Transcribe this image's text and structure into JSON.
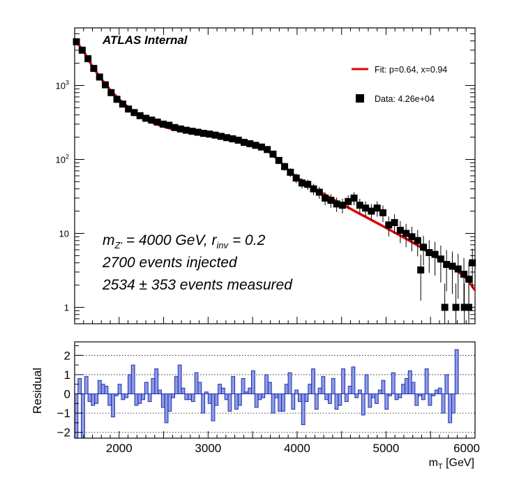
{
  "chart_data": [
    {
      "type": "scatter",
      "panel": "main",
      "yscale": "log",
      "xlim": [
        1500,
        6000
      ],
      "ylim": [
        0.6,
        6000
      ],
      "y_tick_labels": [
        "1",
        "10",
        "10^2",
        "10^3"
      ],
      "y_tick_values": [
        1,
        10,
        100,
        1000
      ],
      "header_text": "ATLAS Internal",
      "legend": {
        "placement": "top-right",
        "entries": [
          {
            "label": "Fit: p=0.64, x=0.94",
            "marker": "line",
            "color": "#e00000"
          },
          {
            "label": "Data: 4.26e+04",
            "marker": "square",
            "color": "#000000"
          }
        ]
      },
      "annotations": {
        "line1_main": "m",
        "line1_sub1": "Z′",
        "line1_mid": " = 4000 GeV, r",
        "line1_sub2": "inv",
        "line1_end": " = 0.2",
        "line2": "2700 events injected",
        "line3": "2534 ± 353 events measured"
      },
      "series": [
        {
          "name": "Data: 4.26e+04",
          "color": "#000000",
          "points": [
            [
              1520,
              3900
            ],
            [
              1585,
              3000
            ],
            [
              1650,
              2300
            ],
            [
              1715,
              1700
            ],
            [
              1780,
              1300
            ],
            [
              1845,
              1020
            ],
            [
              1910,
              800
            ],
            [
              1975,
              650
            ],
            [
              2040,
              560
            ],
            [
              2105,
              480
            ],
            [
              2170,
              430
            ],
            [
              2235,
              390
            ],
            [
              2300,
              360
            ],
            [
              2365,
              340
            ],
            [
              2430,
              320
            ],
            [
              2495,
              300
            ],
            [
              2560,
              290
            ],
            [
              2625,
              270
            ],
            [
              2690,
              258
            ],
            [
              2755,
              248
            ],
            [
              2820,
              240
            ],
            [
              2885,
              233
            ],
            [
              2950,
              225
            ],
            [
              3015,
              220
            ],
            [
              3080,
              213
            ],
            [
              3145,
              205
            ],
            [
              3210,
              197
            ],
            [
              3275,
              190
            ],
            [
              3340,
              182
            ],
            [
              3405,
              170
            ],
            [
              3470,
              163
            ],
            [
              3535,
              155
            ],
            [
              3600,
              147
            ],
            [
              3665,
              136
            ],
            [
              3730,
              118
            ],
            [
              3795,
              97
            ],
            [
              3860,
              80
            ],
            [
              3925,
              67
            ],
            [
              3990,
              56
            ],
            [
              4055,
              48
            ],
            [
              4120,
              46
            ],
            [
              4185,
              40
            ],
            [
              4250,
              36
            ],
            [
              4315,
              30
            ],
            [
              4380,
              28
            ],
            [
              4445,
              25
            ],
            [
              4510,
              24
            ],
            [
              4575,
              27
            ],
            [
              4640,
              30
            ],
            [
              4705,
              24
            ],
            [
              4770,
              22
            ],
            [
              4835,
              20
            ],
            [
              4900,
              22
            ],
            [
              4965,
              19
            ],
            [
              5030,
              13
            ],
            [
              5095,
              14
            ],
            [
              5160,
              11
            ],
            [
              5225,
              10
            ],
            [
              5290,
              9
            ],
            [
              5355,
              8
            ],
            [
              5420,
              6.5
            ],
            [
              5485,
              5.5
            ],
            [
              5550,
              5.2
            ],
            [
              5615,
              4.5
            ],
            [
              5680,
              3.8
            ],
            [
              5745,
              3.6
            ],
            [
              5810,
              3.3
            ],
            [
              5875,
              2.8
            ],
            [
              5930,
              2.4
            ],
            [
              5970,
              4.0
            ],
            [
              5390,
              3.2
            ],
            [
              5660,
              1.0
            ],
            [
              5785,
              1.0
            ],
            [
              5880,
              1.0
            ],
            [
              5930,
              1.0
            ]
          ]
        },
        {
          "name": "Fit: p=0.64, x=0.94",
          "color": "#e00000",
          "points": [
            [
              1500,
              4200
            ],
            [
              1600,
              2900
            ],
            [
              1700,
              1800
            ],
            [
              1800,
              1220
            ],
            [
              1900,
              870
            ],
            [
              2000,
              650
            ],
            [
              2100,
              510
            ],
            [
              2200,
              410
            ],
            [
              2300,
              345
            ],
            [
              2400,
              305
            ],
            [
              2500,
              278
            ],
            [
              2600,
              258
            ],
            [
              2700,
              242
            ],
            [
              2800,
              230
            ],
            [
              2900,
              220
            ],
            [
              3000,
              211
            ],
            [
              3100,
              201
            ],
            [
              3200,
              192
            ],
            [
              3300,
              183
            ],
            [
              3400,
              172
            ],
            [
              3500,
              160
            ],
            [
              3600,
              146
            ],
            [
              3700,
              123
            ],
            [
              3800,
              95
            ],
            [
              3900,
              72
            ],
            [
              4000,
              57
            ],
            [
              4100,
              47
            ],
            [
              4200,
              40
            ],
            [
              4300,
              34
            ],
            [
              4400,
              29
            ],
            [
              4500,
              25
            ],
            [
              4600,
              21.5
            ],
            [
              4700,
              18.5
            ],
            [
              4800,
              16
            ],
            [
              4900,
              13.8
            ],
            [
              5000,
              11.9
            ],
            [
              5100,
              10.2
            ],
            [
              5200,
              8.8
            ],
            [
              5300,
              7.5
            ],
            [
              5400,
              6.4
            ],
            [
              5500,
              5.3
            ],
            [
              5600,
              4.5
            ],
            [
              5700,
              3.8
            ],
            [
              5800,
              3.1
            ],
            [
              5900,
              2.5
            ],
            [
              6000,
              1.7
            ]
          ]
        }
      ]
    },
    {
      "type": "bar",
      "panel": "residual",
      "ylabel": "Residual",
      "xlabel_main": "m",
      "xlabel_sub": "T",
      "xlabel_unit": " [GeV]",
      "x_tick_labels": [
        "2000",
        "3000",
        "4000",
        "5000",
        "6000"
      ],
      "x_tick_values": [
        2000,
        3000,
        4000,
        5000,
        6000
      ],
      "y_tick_labels": [
        "−2",
        "−1",
        "0",
        "1",
        "2"
      ],
      "y_tick_values": [
        -2,
        -1,
        0,
        1,
        2
      ],
      "xlim": [
        1500,
        6000
      ],
      "ylim": [
        -2.3,
        2.7
      ],
      "grid": "horizontal dotted",
      "fill": "#8f9ce0",
      "edge": "#1a2bb8",
      "bin_width": 37.5,
      "values": [
        -2.3,
        0.8,
        -2.3,
        0.9,
        -0.4,
        -0.6,
        -0.5,
        0.7,
        0.5,
        0.4,
        -0.6,
        -1.2,
        -0.1,
        0.5,
        -0.3,
        -0.2,
        1.0,
        1.5,
        -0.6,
        -0.5,
        -0.3,
        0.6,
        -0.4,
        0.8,
        1.3,
        0.2,
        -0.7,
        -1.5,
        -0.9,
        -0.2,
        0.9,
        1.5,
        0.3,
        -0.3,
        -0.3,
        -0.4,
        1.1,
        0.6,
        -1.0,
        0.1,
        -0.5,
        -1.4,
        -0.6,
        0.5,
        0.3,
        -0.3,
        -0.9,
        0.9,
        -0.8,
        -0.6,
        0.8,
        0.1,
        0.3,
        1.2,
        -0.7,
        -0.3,
        -0.2,
        1.0,
        0.6,
        -1.0,
        -0.2,
        -0.9,
        -0.9,
        0.5,
        1.1,
        -0.8,
        0.2,
        -0.4,
        -1.6,
        -0.4,
        0.5,
        1.3,
        -0.8,
        0.3,
        0.9,
        -0.3,
        -0.5,
        0.8,
        -0.8,
        -0.6,
        1.3,
        -0.4,
        0.4,
        1.4,
        -0.2,
        0.2,
        -1.1,
        1.0,
        -0.7,
        -0.2,
        -0.5,
        0.2,
        0.7,
        -0.8,
        -0.1,
        1.1,
        -0.3,
        -0.2,
        0.5,
        0.8,
        1.2,
        0.6,
        -0.6,
        -0.1,
        -0.3,
        1.3,
        -0.6,
        -0.1,
        0.2,
        0.3,
        -1.0,
        1.0,
        -1.5,
        -1.0,
        2.3
      ]
    }
  ]
}
